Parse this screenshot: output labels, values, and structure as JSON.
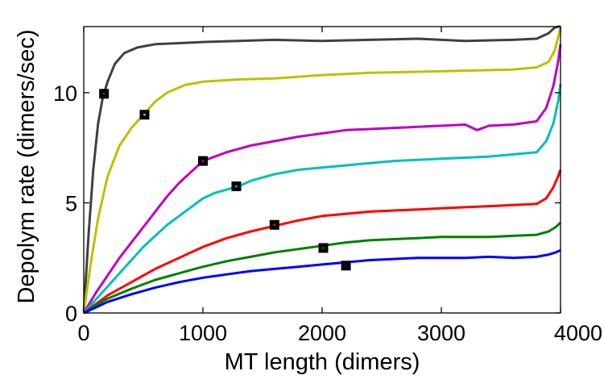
{
  "chart_data": {
    "type": "line",
    "title": "",
    "xlabel": "MT length (dimers)",
    "ylabel": "Depolym rate (dimers/sec)",
    "xlim": [
      0,
      4000
    ],
    "ylim": [
      0,
      13
    ],
    "x_ticks": [
      0,
      1000,
      2000,
      3000,
      4000
    ],
    "y_ticks": [
      0,
      5,
      10
    ],
    "grid": false,
    "legend": "none",
    "series": [
      {
        "name": "dark-gray",
        "color": "#404040",
        "x": [
          0,
          40,
          80,
          120,
          160,
          200,
          260,
          340,
          450,
          600,
          800,
          1000,
          1300,
          1600,
          2000,
          2400,
          2800,
          3200,
          3600,
          3800,
          3900,
          3950,
          3980,
          4000
        ],
        "y": [
          0,
          3.5,
          6.5,
          8.6,
          9.8,
          10.5,
          11.3,
          11.8,
          12.05,
          12.2,
          12.25,
          12.3,
          12.35,
          12.4,
          12.35,
          12.4,
          12.45,
          12.35,
          12.4,
          12.45,
          12.7,
          12.95,
          13.0,
          13.0
        ],
        "marker": {
          "x": 170,
          "y": 9.95
        }
      },
      {
        "name": "yellow",
        "color": "#bfbf00",
        "x": [
          0,
          60,
          120,
          200,
          300,
          400,
          500,
          600,
          700,
          850,
          1000,
          1300,
          1600,
          2000,
          2400,
          2800,
          3200,
          3600,
          3800,
          3900,
          3950,
          3980,
          4000
        ],
        "y": [
          0,
          2.3,
          4.3,
          6.2,
          7.6,
          8.4,
          9.0,
          9.6,
          10.0,
          10.35,
          10.5,
          10.6,
          10.65,
          10.8,
          10.9,
          10.95,
          11.0,
          11.05,
          11.15,
          11.4,
          11.9,
          12.5,
          13.0
        ],
        "marker": {
          "x": 510,
          "y": 9.0
        }
      },
      {
        "name": "magenta",
        "color": "#bf00bf",
        "x": [
          0,
          100,
          200,
          300,
          400,
          500,
          600,
          700,
          800,
          900,
          1000,
          1200,
          1400,
          1600,
          1800,
          2000,
          2200,
          2400,
          2600,
          2800,
          3000,
          3200,
          3300,
          3400,
          3600,
          3800,
          3880,
          3940,
          3980,
          4000
        ],
        "y": [
          0,
          0.9,
          1.7,
          2.5,
          3.2,
          3.9,
          4.6,
          5.3,
          5.9,
          6.4,
          6.9,
          7.3,
          7.6,
          7.8,
          8.0,
          8.15,
          8.3,
          8.35,
          8.4,
          8.45,
          8.5,
          8.55,
          8.3,
          8.5,
          8.55,
          8.7,
          9.3,
          10.3,
          11.4,
          12.2
        ],
        "marker": {
          "x": 1000,
          "y": 6.9
        }
      },
      {
        "name": "cyan",
        "color": "#00bfbf",
        "x": [
          0,
          100,
          200,
          300,
          400,
          500,
          600,
          700,
          800,
          900,
          1000,
          1100,
          1200,
          1300,
          1400,
          1600,
          1800,
          2000,
          2200,
          2400,
          2600,
          2800,
          3000,
          3200,
          3400,
          3600,
          3800,
          3880,
          3940,
          3980,
          4000
        ],
        "y": [
          0,
          0.6,
          1.2,
          1.8,
          2.4,
          3.0,
          3.5,
          4.0,
          4.4,
          4.8,
          5.2,
          5.45,
          5.6,
          5.75,
          6.0,
          6.3,
          6.5,
          6.6,
          6.7,
          6.8,
          6.9,
          6.95,
          7.0,
          7.05,
          7.1,
          7.2,
          7.3,
          7.8,
          8.6,
          9.6,
          10.4
        ],
        "marker": {
          "x": 1280,
          "y": 5.75
        }
      },
      {
        "name": "red",
        "color": "#ff0000",
        "x": [
          0,
          100,
          200,
          300,
          400,
          500,
          600,
          800,
          1000,
          1200,
          1400,
          1600,
          1800,
          2000,
          2200,
          2400,
          2600,
          2800,
          3000,
          3200,
          3400,
          3600,
          3800,
          3880,
          3940,
          3980,
          4000
        ],
        "y": [
          0,
          0.4,
          0.8,
          1.1,
          1.4,
          1.7,
          2.0,
          2.5,
          3.0,
          3.4,
          3.7,
          3.95,
          4.2,
          4.4,
          4.5,
          4.6,
          4.65,
          4.7,
          4.75,
          4.8,
          4.85,
          4.9,
          4.95,
          5.2,
          5.7,
          6.2,
          6.5
        ],
        "marker": {
          "x": 1600,
          "y": 4.0
        }
      },
      {
        "name": "green",
        "color": "#008000",
        "x": [
          0,
          100,
          200,
          400,
          600,
          800,
          1000,
          1200,
          1400,
          1600,
          1800,
          2000,
          2200,
          2400,
          2600,
          2800,
          3000,
          3200,
          3400,
          3600,
          3800,
          3900,
          3960,
          4000
        ],
        "y": [
          0,
          0.35,
          0.65,
          1.1,
          1.5,
          1.8,
          2.1,
          2.35,
          2.55,
          2.75,
          2.9,
          3.05,
          3.2,
          3.3,
          3.35,
          3.4,
          3.45,
          3.45,
          3.45,
          3.5,
          3.55,
          3.7,
          3.9,
          4.1
        ],
        "marker": {
          "x": 2010,
          "y": 2.95
        }
      },
      {
        "name": "blue",
        "color": "#0000ff",
        "x": [
          0,
          100,
          200,
          400,
          600,
          800,
          1000,
          1200,
          1400,
          1600,
          1800,
          2000,
          2200,
          2400,
          2600,
          2800,
          3000,
          3200,
          3400,
          3600,
          3800,
          3900,
          3960,
          4000
        ],
        "y": [
          0,
          0.25,
          0.5,
          0.85,
          1.15,
          1.4,
          1.6,
          1.75,
          1.9,
          2.0,
          2.1,
          2.2,
          2.3,
          2.4,
          2.45,
          2.5,
          2.5,
          2.5,
          2.55,
          2.5,
          2.55,
          2.65,
          2.75,
          2.85
        ],
        "marker": {
          "x": 2200,
          "y": 2.15
        }
      }
    ]
  }
}
